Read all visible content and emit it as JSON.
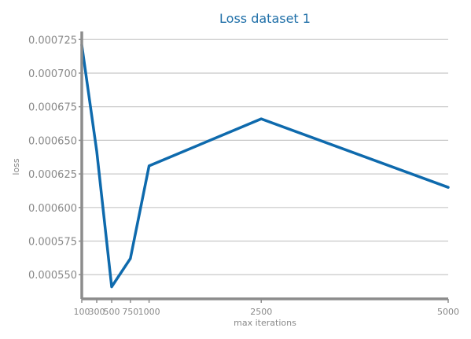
{
  "chart_data": {
    "type": "line",
    "title": "Loss dataset 1",
    "xlabel": "max iterations",
    "ylabel": "loss",
    "xlim": [
      100,
      5000
    ],
    "ylim": [
      0.000532,
      0.000731
    ],
    "x_ticks": [
      100,
      300,
      500,
      750,
      1000,
      2500,
      5000
    ],
    "x_tick_labels": [
      "100",
      "300",
      "500",
      "750",
      "1000",
      "2500",
      "5000"
    ],
    "y_ticks": [
      0.00055,
      0.000575,
      0.0006,
      0.000625,
      0.00065,
      0.000675,
      0.0007,
      0.000725
    ],
    "y_tick_labels": [
      "0.000550",
      "0.000575",
      "0.000600",
      "0.000625",
      "0.000650",
      "0.000675",
      "0.000700",
      "0.000725"
    ],
    "grid": "horizontal",
    "series": [
      {
        "x": [
          100,
          300,
          500,
          750,
          1000,
          2500,
          5000
        ],
        "values": [
          0.000721,
          0.000642,
          0.000541,
          0.000562,
          0.000631,
          0.000666,
          0.000615
        ]
      }
    ],
    "colors": {
      "line": "#0e6aad",
      "axis": "#8c8c8c",
      "grid": "#c8c8c8",
      "title": "#1f6fa8",
      "text": "#888888"
    }
  }
}
